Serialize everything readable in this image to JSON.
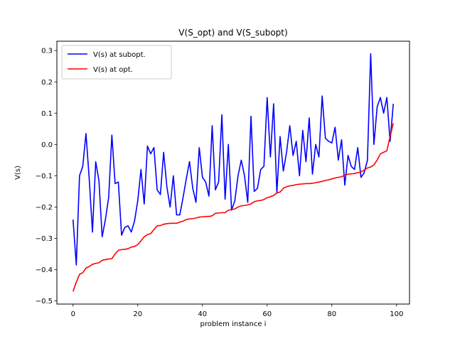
{
  "chart_data": {
    "type": "line",
    "title": "V(S_opt) and V(S_subopt)",
    "xlabel": "problem instance i",
    "ylabel": "V(s)",
    "xlim": [
      -5,
      104
    ],
    "ylim": [
      -0.51,
      0.33
    ],
    "xticks": [
      0,
      20,
      40,
      60,
      80,
      100
    ],
    "yticks": [
      -0.5,
      -0.4,
      -0.3,
      -0.2,
      -0.1,
      0.0,
      0.1,
      0.2,
      0.3
    ],
    "ytick_labels": [
      "−0.5",
      "−0.4",
      "−0.3",
      "−0.2",
      "−0.1",
      "0.0",
      "0.1",
      "0.2",
      "0.3"
    ],
    "legend_position": "upper-left",
    "grid": false,
    "series": [
      {
        "name": "V(s) at subopt.",
        "color": "#0000ff",
        "x": [
          0,
          1,
          2,
          3,
          4,
          5,
          6,
          7,
          8,
          9,
          10,
          11,
          12,
          13,
          14,
          15,
          16,
          17,
          18,
          19,
          20,
          21,
          22,
          23,
          24,
          25,
          26,
          27,
          28,
          29,
          30,
          31,
          32,
          33,
          34,
          35,
          36,
          37,
          38,
          39,
          40,
          41,
          42,
          43,
          44,
          45,
          46,
          47,
          48,
          49,
          50,
          51,
          52,
          53,
          54,
          55,
          56,
          57,
          58,
          59,
          60,
          61,
          62,
          63,
          64,
          65,
          66,
          67,
          68,
          69,
          70,
          71,
          72,
          73,
          74,
          75,
          76,
          77,
          78,
          79,
          80,
          81,
          82,
          83,
          84,
          85,
          86,
          87,
          88,
          89,
          90,
          91,
          92,
          93,
          94,
          95,
          96,
          97,
          98,
          99
        ],
        "y": [
          -0.24,
          -0.385,
          -0.1,
          -0.07,
          0.035,
          -0.11,
          -0.28,
          -0.055,
          -0.115,
          -0.295,
          -0.24,
          -0.17,
          0.03,
          -0.125,
          -0.12,
          -0.29,
          -0.265,
          -0.26,
          -0.28,
          -0.245,
          -0.18,
          -0.08,
          -0.19,
          -0.005,
          -0.03,
          -0.01,
          -0.145,
          -0.16,
          -0.025,
          -0.135,
          -0.2,
          -0.1,
          -0.225,
          -0.225,
          -0.17,
          -0.11,
          -0.055,
          -0.14,
          -0.185,
          -0.01,
          -0.105,
          -0.12,
          -0.165,
          0.06,
          -0.145,
          -0.12,
          0.095,
          -0.175,
          0.0,
          -0.21,
          -0.18,
          -0.1,
          -0.05,
          -0.1,
          -0.185,
          0.09,
          -0.15,
          -0.14,
          -0.08,
          -0.07,
          0.15,
          -0.04,
          0.13,
          -0.155,
          0.025,
          -0.085,
          -0.025,
          0.06,
          -0.035,
          0.01,
          -0.1,
          0.045,
          -0.055,
          0.085,
          -0.095,
          0.0,
          -0.04,
          0.155,
          0.02,
          0.01,
          0.005,
          0.055,
          -0.05,
          0.015,
          -0.13,
          -0.035,
          -0.07,
          -0.08,
          -0.01,
          -0.105,
          -0.09,
          -0.05,
          0.29,
          0.0,
          0.12,
          0.15,
          0.1,
          0.15,
          0.01,
          0.13
        ]
      },
      {
        "name": "V(s) at opt.",
        "color": "#ff0000",
        "x": [
          0,
          1,
          2,
          3,
          4,
          5,
          6,
          7,
          8,
          9,
          10,
          11,
          12,
          13,
          14,
          15,
          16,
          17,
          18,
          19,
          20,
          21,
          22,
          23,
          24,
          25,
          26,
          27,
          28,
          29,
          30,
          31,
          32,
          33,
          34,
          35,
          36,
          37,
          38,
          39,
          40,
          41,
          42,
          43,
          44,
          45,
          46,
          47,
          48,
          49,
          50,
          51,
          52,
          53,
          54,
          55,
          56,
          57,
          58,
          59,
          60,
          61,
          62,
          63,
          64,
          65,
          66,
          67,
          68,
          69,
          70,
          71,
          72,
          73,
          74,
          75,
          76,
          77,
          78,
          79,
          80,
          81,
          82,
          83,
          84,
          85,
          86,
          87,
          88,
          89,
          90,
          91,
          92,
          93,
          94,
          95,
          96,
          97,
          98,
          99
        ],
        "y": [
          -0.47,
          -0.44,
          -0.415,
          -0.41,
          -0.395,
          -0.39,
          -0.383,
          -0.38,
          -0.378,
          -0.37,
          -0.368,
          -0.366,
          -0.365,
          -0.35,
          -0.338,
          -0.336,
          -0.335,
          -0.333,
          -0.328,
          -0.326,
          -0.32,
          -0.308,
          -0.295,
          -0.288,
          -0.285,
          -0.272,
          -0.26,
          -0.259,
          -0.255,
          -0.253,
          -0.252,
          -0.252,
          -0.252,
          -0.248,
          -0.245,
          -0.24,
          -0.238,
          -0.237,
          -0.235,
          -0.232,
          -0.231,
          -0.23,
          -0.23,
          -0.228,
          -0.22,
          -0.219,
          -0.218,
          -0.218,
          -0.21,
          -0.208,
          -0.206,
          -0.2,
          -0.196,
          -0.195,
          -0.193,
          -0.19,
          -0.183,
          -0.18,
          -0.179,
          -0.176,
          -0.17,
          -0.167,
          -0.163,
          -0.155,
          -0.152,
          -0.14,
          -0.135,
          -0.132,
          -0.131,
          -0.128,
          -0.127,
          -0.126,
          -0.125,
          -0.125,
          -0.124,
          -0.122,
          -0.12,
          -0.118,
          -0.115,
          -0.113,
          -0.11,
          -0.107,
          -0.105,
          -0.103,
          -0.098,
          -0.095,
          -0.094,
          -0.093,
          -0.09,
          -0.088,
          -0.082,
          -0.075,
          -0.072,
          -0.065,
          -0.05,
          -0.03,
          -0.025,
          -0.02,
          0.025,
          0.068
        ]
      }
    ]
  }
}
